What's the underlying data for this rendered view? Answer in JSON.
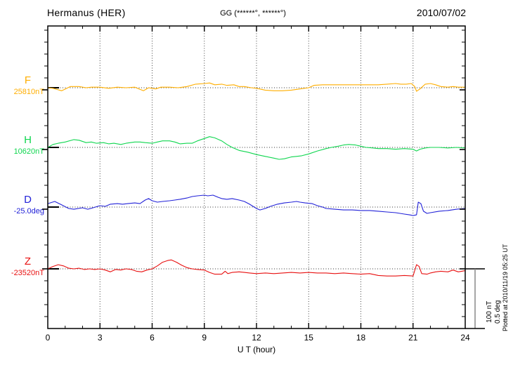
{
  "header": {
    "station": "Hermanus (HER)",
    "coords": "GG (******°, ******°)",
    "date": "2010/07/02"
  },
  "chart_data": {
    "type": "line",
    "title": "Hermanus (HER) magnetogram, 4 stacked components vs universal time",
    "xlabel": "U T (hour)",
    "xlim": [
      0,
      24
    ],
    "xticks": [
      0,
      3,
      6,
      9,
      12,
      15,
      18,
      21,
      24
    ],
    "grid": "dotted vertical lines every 3 h; dotted horizontal baseline per component",
    "legend_position": "left margin, one colored label per trace",
    "scale_bar": {
      "line1": "100 nT",
      "line2": "0.5 deg"
    },
    "plotted_at": "Plotted at 2010/11/19 05:25 UT",
    "series": [
      {
        "name": "F",
        "baseline_label": "25810nT",
        "unit": "nT",
        "color": "#FFAE00",
        "points": [
          [
            0,
            0
          ],
          [
            0.3,
            -1
          ],
          [
            0.8,
            -5
          ],
          [
            1.3,
            2
          ],
          [
            1.8,
            2
          ],
          [
            2.2,
            0
          ],
          [
            2.5,
            1
          ],
          [
            3,
            1
          ],
          [
            3.5,
            -1
          ],
          [
            4,
            1
          ],
          [
            4.5,
            0
          ],
          [
            5,
            1
          ],
          [
            5.5,
            -5
          ],
          [
            5.8,
            0
          ],
          [
            6.2,
            -2
          ],
          [
            6.5,
            1
          ],
          [
            7,
            1
          ],
          [
            7.5,
            0
          ],
          [
            8,
            2
          ],
          [
            8.5,
            6
          ],
          [
            9,
            7
          ],
          [
            9.3,
            8
          ],
          [
            9.6,
            5
          ],
          [
            10,
            6
          ],
          [
            10.3,
            4
          ],
          [
            10.7,
            5
          ],
          [
            11,
            2
          ],
          [
            11.3,
            2
          ],
          [
            11.7,
            0
          ],
          [
            12,
            -1
          ],
          [
            12.5,
            -4
          ],
          [
            13,
            -5
          ],
          [
            13.5,
            -5
          ],
          [
            14,
            -4
          ],
          [
            14.5,
            -2
          ],
          [
            15,
            0
          ],
          [
            15.3,
            4
          ],
          [
            15.8,
            5
          ],
          [
            16.5,
            5
          ],
          [
            17,
            5
          ],
          [
            17.5,
            5
          ],
          [
            18,
            5
          ],
          [
            18.5,
            5
          ],
          [
            19,
            5
          ],
          [
            19.5,
            6
          ],
          [
            20,
            7
          ],
          [
            20.3,
            6
          ],
          [
            20.6,
            6
          ],
          [
            20.9,
            7
          ],
          [
            21.1,
            2
          ],
          [
            21.2,
            -6
          ],
          [
            21.4,
            -2
          ],
          [
            21.7,
            6
          ],
          [
            22,
            7
          ],
          [
            22.3,
            5
          ],
          [
            22.6,
            2
          ],
          [
            23,
            1
          ],
          [
            23.3,
            2
          ],
          [
            23.6,
            1
          ],
          [
            24,
            1
          ]
        ]
      },
      {
        "name": "H",
        "baseline_label": "10620nT",
        "unit": "nT",
        "color": "#0FD64F",
        "points": [
          [
            0,
            0
          ],
          [
            0.3,
            5
          ],
          [
            0.6,
            7
          ],
          [
            1,
            9
          ],
          [
            1.5,
            13
          ],
          [
            1.8,
            12
          ],
          [
            2.2,
            8
          ],
          [
            2.5,
            9
          ],
          [
            2.8,
            7
          ],
          [
            3.2,
            8
          ],
          [
            3.5,
            6
          ],
          [
            3.8,
            7
          ],
          [
            4.2,
            5
          ],
          [
            4.5,
            7
          ],
          [
            5,
            9
          ],
          [
            5.3,
            9
          ],
          [
            5.6,
            8
          ],
          [
            6,
            7
          ],
          [
            6.3,
            9
          ],
          [
            6.6,
            11
          ],
          [
            7,
            11
          ],
          [
            7.3,
            9
          ],
          [
            7.6,
            6
          ],
          [
            8,
            7
          ],
          [
            8.3,
            7
          ],
          [
            8.6,
            11
          ],
          [
            9,
            15
          ],
          [
            9.3,
            18
          ],
          [
            9.6,
            16
          ],
          [
            10,
            11
          ],
          [
            10.3,
            5
          ],
          [
            10.6,
            0
          ],
          [
            11,
            -5
          ],
          [
            11.5,
            -8
          ],
          [
            12,
            -12
          ],
          [
            12.5,
            -15
          ],
          [
            13,
            -18
          ],
          [
            13.3,
            -20
          ],
          [
            13.6,
            -19
          ],
          [
            14,
            -16
          ],
          [
            14.3,
            -15
          ],
          [
            14.6,
            -14
          ],
          [
            15,
            -11
          ],
          [
            15.5,
            -6
          ],
          [
            16,
            -2
          ],
          [
            16.3,
            0
          ],
          [
            16.7,
            2
          ],
          [
            17,
            4
          ],
          [
            17.3,
            5
          ],
          [
            17.7,
            4
          ],
          [
            18,
            2
          ],
          [
            18.3,
            0
          ],
          [
            18.7,
            -1
          ],
          [
            19,
            -2
          ],
          [
            19.5,
            -2
          ],
          [
            20,
            -3
          ],
          [
            20.5,
            -2
          ],
          [
            21,
            -3
          ],
          [
            21.2,
            -6
          ],
          [
            21.4,
            -3
          ],
          [
            21.7,
            -1
          ],
          [
            22,
            0
          ],
          [
            22.5,
            0
          ],
          [
            23,
            -1
          ],
          [
            23.5,
            0
          ],
          [
            24,
            -1
          ]
        ]
      },
      {
        "name": "D",
        "baseline_label": "-25.0deg",
        "unit": "deg",
        "color": "#2222D8",
        "points": [
          [
            0,
            0.029
          ],
          [
            0.4,
            0.047
          ],
          [
            0.8,
            0.018
          ],
          [
            1.2,
            -0.012
          ],
          [
            1.5,
            -0.018
          ],
          [
            2,
            -0.006
          ],
          [
            2.3,
            -0.018
          ],
          [
            2.6,
            -0.006
          ],
          [
            3,
            0.012
          ],
          [
            3.3,
            0.006
          ],
          [
            3.6,
            0.024
          ],
          [
            4,
            0.029
          ],
          [
            4.3,
            0.024
          ],
          [
            4.6,
            0.029
          ],
          [
            5,
            0.035
          ],
          [
            5.3,
            0.029
          ],
          [
            5.6,
            0.059
          ],
          [
            5.8,
            0.071
          ],
          [
            6,
            0.053
          ],
          [
            6.3,
            0.041
          ],
          [
            6.6,
            0.047
          ],
          [
            7,
            0.053
          ],
          [
            7.3,
            0.059
          ],
          [
            7.6,
            0.065
          ],
          [
            8,
            0.076
          ],
          [
            8.3,
            0.088
          ],
          [
            8.6,
            0.094
          ],
          [
            9,
            0.1
          ],
          [
            9.2,
            0.094
          ],
          [
            9.5,
            0.1
          ],
          [
            9.8,
            0.082
          ],
          [
            10,
            0.071
          ],
          [
            10.3,
            0.065
          ],
          [
            10.6,
            0.071
          ],
          [
            11,
            0.059
          ],
          [
            11.3,
            0.047
          ],
          [
            11.6,
            0.024
          ],
          [
            11.8,
            0.006
          ],
          [
            12,
            -0.012
          ],
          [
            12.2,
            -0.024
          ],
          [
            12.5,
            -0.012
          ],
          [
            12.8,
            0.006
          ],
          [
            13.2,
            0.024
          ],
          [
            13.6,
            0.035
          ],
          [
            14,
            0.041
          ],
          [
            14.3,
            0.047
          ],
          [
            14.5,
            0.041
          ],
          [
            14.8,
            0.035
          ],
          [
            15.2,
            0.029
          ],
          [
            15.5,
            0.012
          ],
          [
            15.8,
            0
          ],
          [
            16,
            -0.012
          ],
          [
            16.5,
            -0.018
          ],
          [
            17,
            -0.024
          ],
          [
            17.5,
            -0.024
          ],
          [
            18,
            -0.029
          ],
          [
            18.5,
            -0.029
          ],
          [
            19,
            -0.035
          ],
          [
            19.5,
            -0.041
          ],
          [
            20,
            -0.047
          ],
          [
            20.5,
            -0.059
          ],
          [
            20.8,
            -0.065
          ],
          [
            21,
            -0.071
          ],
          [
            21.2,
            -0.065
          ],
          [
            21.3,
            0.041
          ],
          [
            21.45,
            0.029
          ],
          [
            21.6,
            -0.035
          ],
          [
            21.8,
            -0.053
          ],
          [
            22,
            -0.047
          ],
          [
            22.5,
            -0.035
          ],
          [
            23,
            -0.029
          ],
          [
            23.5,
            -0.018
          ],
          [
            24,
            -0.012
          ]
        ]
      },
      {
        "name": "Z",
        "baseline_label": "-23520nT",
        "unit": "nT",
        "color": "#E81010",
        "points": [
          [
            0,
            0
          ],
          [
            0.3,
            4
          ],
          [
            0.6,
            7
          ],
          [
            0.9,
            5
          ],
          [
            1.2,
            1
          ],
          [
            1.5,
            0
          ],
          [
            1.8,
            1
          ],
          [
            2.1,
            -1
          ],
          [
            2.4,
            0
          ],
          [
            2.7,
            -1
          ],
          [
            3,
            0
          ],
          [
            3.3,
            -2
          ],
          [
            3.6,
            -5
          ],
          [
            3.9,
            -1
          ],
          [
            4.2,
            -2
          ],
          [
            4.5,
            0
          ],
          [
            4.8,
            -1
          ],
          [
            5.1,
            -4
          ],
          [
            5.4,
            -5
          ],
          [
            5.7,
            -2
          ],
          [
            6,
            0
          ],
          [
            6.3,
            5
          ],
          [
            6.6,
            11
          ],
          [
            6.9,
            14
          ],
          [
            7.1,
            15
          ],
          [
            7.4,
            11
          ],
          [
            7.7,
            6
          ],
          [
            8,
            2
          ],
          [
            8.3,
            0
          ],
          [
            8.6,
            -1
          ],
          [
            9,
            -2
          ],
          [
            9.3,
            -6
          ],
          [
            9.6,
            -9
          ],
          [
            10,
            -9
          ],
          [
            10.2,
            -4
          ],
          [
            10.35,
            -8
          ],
          [
            10.6,
            -6
          ],
          [
            11,
            -5
          ],
          [
            11.3,
            -6
          ],
          [
            11.6,
            -7
          ],
          [
            12,
            -8
          ],
          [
            12.5,
            -7
          ],
          [
            13,
            -8
          ],
          [
            13.5,
            -7
          ],
          [
            14,
            -6
          ],
          [
            14.5,
            -7
          ],
          [
            15,
            -6
          ],
          [
            15.5,
            -7
          ],
          [
            16,
            -7
          ],
          [
            16.5,
            -8
          ],
          [
            17,
            -7
          ],
          [
            17.5,
            -8
          ],
          [
            18,
            -9
          ],
          [
            18.5,
            -8
          ],
          [
            19,
            -11
          ],
          [
            19.5,
            -12
          ],
          [
            20,
            -12
          ],
          [
            20.5,
            -11
          ],
          [
            21,
            -12
          ],
          [
            21.2,
            7
          ],
          [
            21.35,
            4
          ],
          [
            21.5,
            -8
          ],
          [
            21.8,
            -9
          ],
          [
            22,
            -7
          ],
          [
            22.3,
            -5
          ],
          [
            22.6,
            -4
          ],
          [
            23,
            -5
          ],
          [
            23.3,
            -2
          ],
          [
            23.6,
            -5
          ],
          [
            24,
            -3
          ]
        ]
      }
    ]
  }
}
